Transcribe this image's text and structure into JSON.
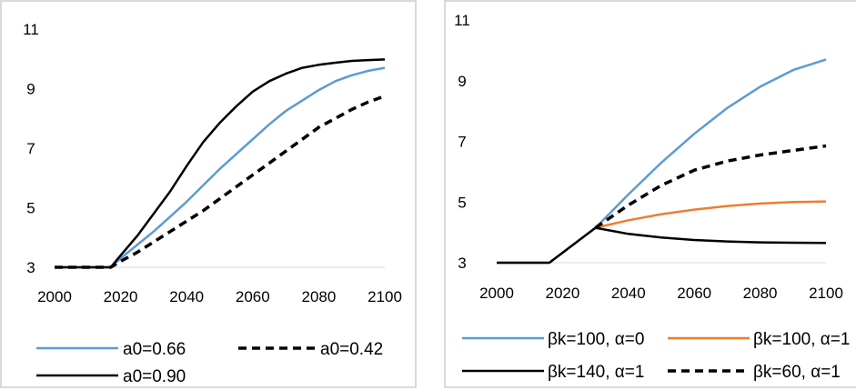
{
  "chart_data": [
    {
      "type": "line",
      "title": "",
      "xlabel": "",
      "ylabel": "",
      "xlim": [
        2000,
        2100
      ],
      "ylim": [
        3,
        11
      ],
      "x_ticks": [
        "2000",
        "2020",
        "2040",
        "2060",
        "2080",
        "2100"
      ],
      "y_ticks": [
        "3",
        "5",
        "7",
        "9",
        "11"
      ],
      "grid": false,
      "legend_position": "bottom",
      "series": [
        {
          "name": "a0=0.66",
          "color": "#5b9bd5",
          "dash": "solid",
          "x": [
            2000,
            2017,
            2020,
            2025,
            2030,
            2035,
            2040,
            2045,
            2050,
            2055,
            2060,
            2065,
            2070,
            2075,
            2080,
            2085,
            2090,
            2095,
            2100
          ],
          "y": [
            3.0,
            3.0,
            3.3,
            3.75,
            4.2,
            4.7,
            5.2,
            5.75,
            6.3,
            6.8,
            7.3,
            7.8,
            8.25,
            8.6,
            8.95,
            9.25,
            9.45,
            9.6,
            9.7
          ]
        },
        {
          "name": "a0=0.42",
          "color": "#000000",
          "dash": "dashed",
          "x": [
            2000,
            2017,
            2020,
            2025,
            2030,
            2035,
            2040,
            2045,
            2050,
            2055,
            2060,
            2065,
            2070,
            2075,
            2080,
            2085,
            2090,
            2095,
            2100
          ],
          "y": [
            3.0,
            3.0,
            3.2,
            3.5,
            3.85,
            4.2,
            4.55,
            4.9,
            5.3,
            5.7,
            6.1,
            6.5,
            6.9,
            7.3,
            7.7,
            8.0,
            8.3,
            8.55,
            8.75
          ]
        },
        {
          "name": "a0=0.90",
          "color": "#000000",
          "dash": "solid",
          "x": [
            2000,
            2017,
            2020,
            2025,
            2030,
            2035,
            2040,
            2045,
            2050,
            2055,
            2060,
            2065,
            2070,
            2075,
            2080,
            2085,
            2090,
            2095,
            2100
          ],
          "y": [
            3.0,
            3.0,
            3.4,
            4.05,
            4.8,
            5.55,
            6.4,
            7.2,
            7.85,
            8.4,
            8.9,
            9.25,
            9.5,
            9.7,
            9.8,
            9.87,
            9.93,
            9.96,
            9.98
          ]
        }
      ]
    },
    {
      "type": "line",
      "title": "",
      "xlabel": "",
      "ylabel": "",
      "xlim": [
        2000,
        2100
      ],
      "ylim": [
        3,
        11
      ],
      "x_ticks": [
        "2000",
        "2020",
        "2040",
        "2060",
        "2080",
        "2100"
      ],
      "y_ticks": [
        "3",
        "5",
        "7",
        "9",
        "11"
      ],
      "grid": false,
      "legend_position": "bottom",
      "series": [
        {
          "name": "βk=100, α=0",
          "color": "#5b9bd5",
          "dash": "solid",
          "x": [
            2000,
            2016,
            2030,
            2040,
            2050,
            2060,
            2070,
            2080,
            2090,
            2100
          ],
          "y": [
            3.0,
            3.0,
            4.15,
            5.25,
            6.3,
            7.25,
            8.1,
            8.8,
            9.35,
            9.7
          ]
        },
        {
          "name": "βk=100, α=1",
          "color": "#ed7d31",
          "dash": "solid",
          "x": [
            2030,
            2040,
            2050,
            2060,
            2070,
            2080,
            2090,
            2100
          ],
          "y": [
            4.15,
            4.4,
            4.6,
            4.75,
            4.87,
            4.95,
            5.0,
            5.02
          ]
        },
        {
          "name": "βk=140, α=1",
          "color": "#000000",
          "dash": "solid",
          "x": [
            2000,
            2016,
            2030,
            2040,
            2050,
            2060,
            2070,
            2080,
            2090,
            2100
          ],
          "y": [
            3.0,
            3.0,
            4.15,
            3.95,
            3.83,
            3.75,
            3.7,
            3.67,
            3.66,
            3.65
          ]
        },
        {
          "name": "βk=60, α=1",
          "color": "#000000",
          "dash": "dashed",
          "x": [
            2030,
            2040,
            2050,
            2060,
            2070,
            2080,
            2090,
            2100
          ],
          "y": [
            4.15,
            4.9,
            5.55,
            6.05,
            6.35,
            6.55,
            6.7,
            6.85
          ]
        }
      ]
    }
  ]
}
